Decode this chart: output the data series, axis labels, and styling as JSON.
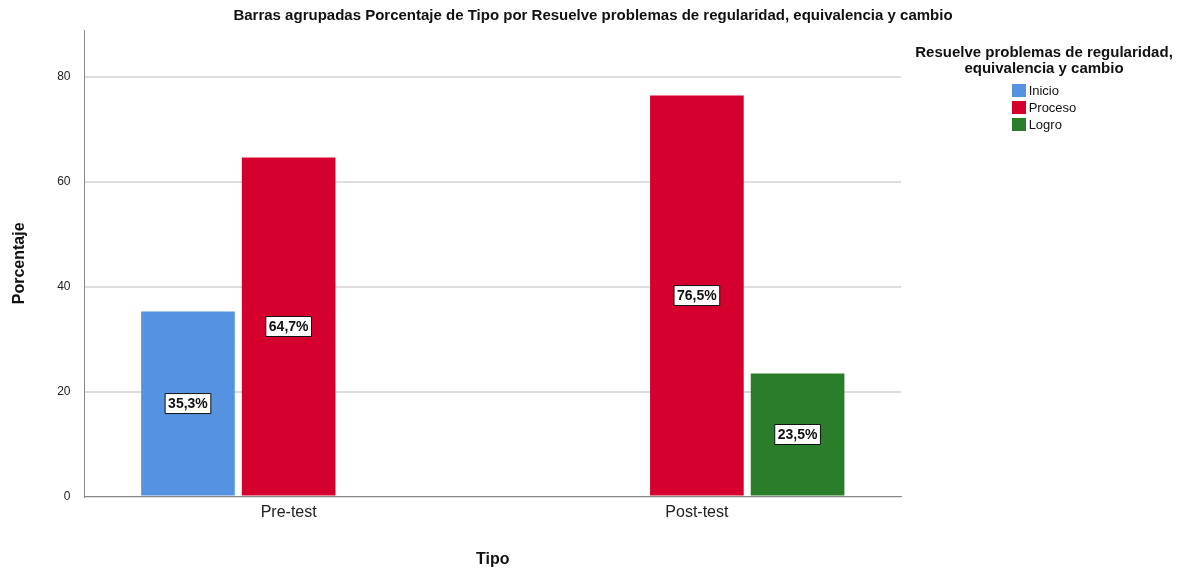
{
  "chart_data": {
    "type": "bar",
    "title": "Barras agrupadas Porcentaje de Tipo por Resuelve problemas de regularidad, equivalencia y cambio",
    "xlabel": "Tipo",
    "ylabel": "Porcentaje",
    "legend_title": "Resuelve problemas de regularidad, equivalencia y cambio",
    "legend": "right",
    "categories": [
      "Pre-test",
      "Post-test"
    ],
    "series": [
      {
        "name": "Inicio",
        "color": "#5592e0",
        "values": [
          35.3,
          0
        ],
        "value_labels": [
          "35,3%",
          null
        ]
      },
      {
        "name": "Proceso",
        "color": "#d6002e",
        "values": [
          64.7,
          76.5
        ],
        "value_labels": [
          "64,7%",
          "76,5%"
        ]
      },
      {
        "name": "Logro",
        "color": "#2a7e2a",
        "values": [
          0,
          23.5
        ],
        "value_labels": [
          null,
          "23,5%"
        ]
      }
    ],
    "ylim": [
      0,
      89
    ],
    "yticks": [
      0,
      20,
      40,
      60,
      80
    ],
    "grid": "y"
  }
}
